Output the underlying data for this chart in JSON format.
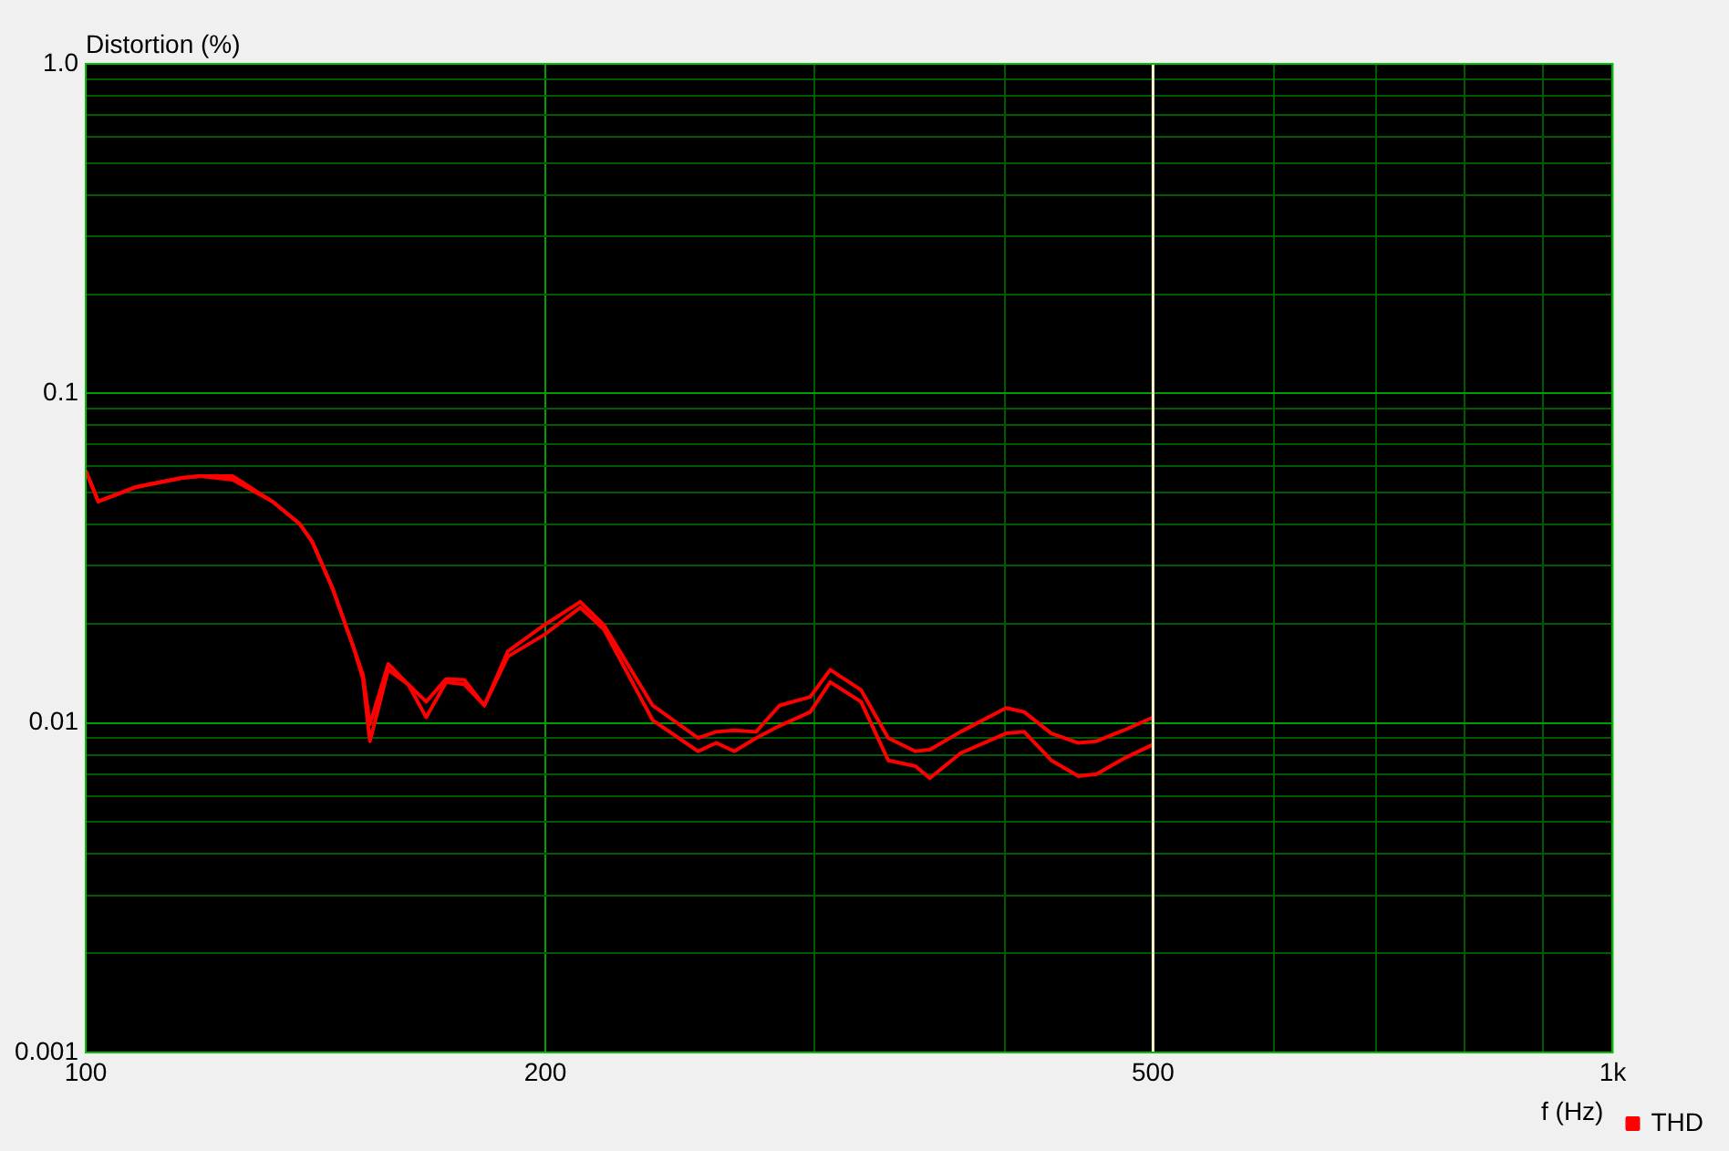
{
  "chart_data": {
    "type": "line",
    "ylabel": "Distortion (%)",
    "xlabel": "f (Hz)",
    "log": "xy",
    "grid": true,
    "legend": "bottom right",
    "marker": "none",
    "line_style": "solid",
    "xlim": [
      100,
      1000
    ],
    "ylim": [
      0.001,
      1.0
    ],
    "xticks": [
      100,
      200,
      {
        "value": 300,
        "label": null
      },
      {
        "value": 400,
        "label": null
      },
      500,
      {
        "value": 600,
        "label": null
      },
      {
        "value": 700,
        "label": null
      },
      {
        "value": 800,
        "label": null
      },
      {
        "value": 900,
        "label": null
      },
      {
        "value": 1000,
        "label": "1k"
      }
    ],
    "yticks": [
      0.001,
      {
        "value": 0.002,
        "label": null
      },
      {
        "value": 0.003,
        "label": null
      },
      {
        "value": 0.004,
        "label": null
      },
      {
        "value": 0.005,
        "label": null
      },
      {
        "value": 0.006,
        "label": null
      },
      {
        "value": 0.007,
        "label": null
      },
      {
        "value": 0.008,
        "label": null
      },
      {
        "value": 0.009,
        "label": null
      },
      0.01,
      {
        "value": 0.02,
        "label": null
      },
      {
        "value": 0.03,
        "label": null
      },
      {
        "value": 0.04,
        "label": null
      },
      {
        "value": 0.05,
        "label": null
      },
      {
        "value": 0.06,
        "label": null
      },
      {
        "value": 0.07,
        "label": null
      },
      {
        "value": 0.08,
        "label": null
      },
      {
        "value": 0.09,
        "label": null
      },
      0.1,
      {
        "value": 0.2,
        "label": null
      },
      {
        "value": 0.3,
        "label": null
      },
      {
        "value": 0.4,
        "label": null
      },
      {
        "value": 0.5,
        "label": null
      },
      {
        "value": 0.6,
        "label": null
      },
      {
        "value": 0.7,
        "label": null
      },
      {
        "value": 0.8,
        "label": null
      },
      {
        "value": 0.9,
        "label": null
      },
      {
        "value": 1.0,
        "label": "1.0"
      }
    ],
    "x": [
      100,
      101.9,
      107.9,
      115.6,
      118.8,
      124.8,
      132.5,
      138.0,
      140.7,
      145.0,
      149.8,
      151.9,
      153.5,
      157.8,
      162.6,
      167.1,
      172.2,
      177.0,
      182.4,
      189.0,
      199.6,
      210.8,
      218.5,
      235.1,
      251.8,
      258.8,
      265.9,
      274.8,
      284.7,
      298.2,
      307.3,
      321.9,
      335.4,
      349.4,
      357.1,
      374.1,
      400.6,
      411.7,
      428.9,
      446.8,
      459.2,
      478.4,
      500
    ],
    "series": [
      {
        "name": "THD",
        "color": "#ff0000",
        "values": [
          0.0583,
          0.047,
          0.052,
          0.0554,
          0.0561,
          0.0561,
          0.047,
          0.0403,
          0.0355,
          0.0258,
          0.0169,
          0.014,
          0.0099,
          0.0151,
          0.0131,
          0.0116,
          0.0136,
          0.0135,
          0.0113,
          0.0165,
          0.0198,
          0.0233,
          0.0198,
          0.0113,
          0.009,
          0.0094,
          0.0095,
          0.0094,
          0.0113,
          0.012,
          0.0145,
          0.0126,
          0.009,
          0.0082,
          0.0083,
          0.0094,
          0.0111,
          0.0108,
          0.0093,
          0.0087,
          0.0088,
          0.0095,
          0.0104
        ]
      },
      {
        "color": "#ff0000",
        "values": [
          0.0583,
          0.047,
          0.052,
          0.0554,
          0.0561,
          0.0547,
          0.047,
          0.0403,
          0.0355,
          0.0258,
          0.0169,
          0.0136,
          0.0088,
          0.0145,
          0.0131,
          0.0104,
          0.0133,
          0.0131,
          0.0113,
          0.0159,
          0.0185,
          0.0224,
          0.0192,
          0.0102,
          0.0082,
          0.0087,
          0.0082,
          0.009,
          0.0098,
          0.0108,
          0.0133,
          0.0116,
          0.0077,
          0.0074,
          0.0068,
          0.0081,
          0.0093,
          0.0094,
          0.0077,
          0.0069,
          0.007,
          0.0078,
          0.0086
        ]
      }
    ],
    "ref_lines": [
      {
        "axis": "x",
        "value": 500,
        "color": "#fffacd"
      }
    ]
  }
}
